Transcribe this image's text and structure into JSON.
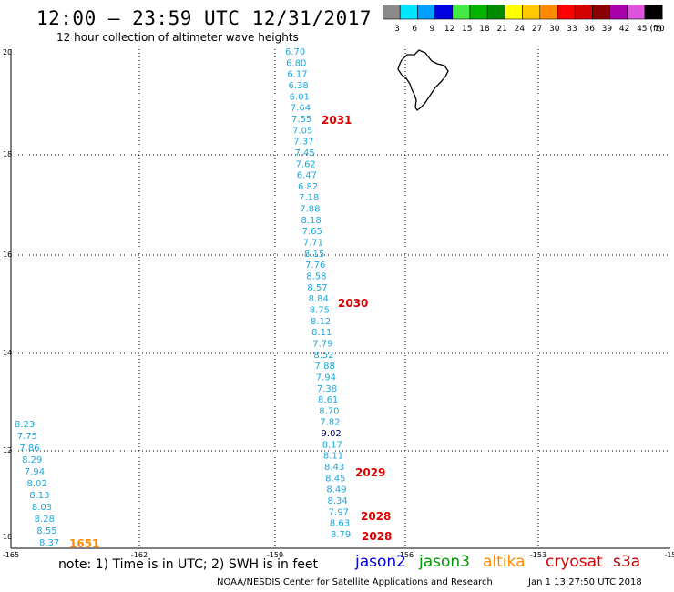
{
  "header": {
    "title": "12:00 — 23:59 UTC 12/31/2017",
    "subtitle": "12 hour collection of altimeter wave heights"
  },
  "legend": {
    "unit": "(ft)",
    "bins": [
      {
        "label": "3",
        "color": "#8a8a8a"
      },
      {
        "label": "6",
        "color": "#00e5ff"
      },
      {
        "label": "9",
        "color": "#00a0ff"
      },
      {
        "label": "12",
        "color": "#0000e0"
      },
      {
        "label": "15",
        "color": "#44e844"
      },
      {
        "label": "18",
        "color": "#00b400"
      },
      {
        "label": "21",
        "color": "#008a00"
      },
      {
        "label": "24",
        "color": "#ffff00"
      },
      {
        "label": "27",
        "color": "#ffc800"
      },
      {
        "label": "30",
        "color": "#ff8c00"
      },
      {
        "label": "33",
        "color": "#ff0000"
      },
      {
        "label": "36",
        "color": "#d40000"
      },
      {
        "label": "39",
        "color": "#8c0000"
      },
      {
        "label": "42",
        "color": "#aa00aa"
      },
      {
        "label": "45",
        "color": "#dd55dd"
      },
      {
        "label": "70",
        "color": "#000000"
      }
    ]
  },
  "axes": {
    "lon_labels": [
      "-165",
      "-162",
      "-159",
      "-156",
      "-153",
      "-15"
    ],
    "lat_labels": [
      "20",
      "18",
      "16",
      "14",
      "12",
      "10"
    ]
  },
  "tracks": {
    "central_values": [
      "6.70",
      "6.80",
      "6.17",
      "6.38",
      "6.01",
      "7.64",
      "7.55",
      "7.05",
      "7.37",
      "7.45",
      "7.62",
      "6.47",
      "6.82",
      "7.18",
      "7.88",
      "8.18",
      "7.65",
      "7.71",
      "8.15",
      "7.76",
      "8.58",
      "8.57",
      "8.84",
      "8.75",
      "8.12",
      "8.11",
      "7.79",
      "8.52",
      "7.88",
      "7.94",
      "7.38",
      "8.61",
      "8.70",
      "7.82",
      "9.02",
      "8.17",
      "8.11",
      "8.43",
      "8.45",
      "8.49",
      "8.34",
      "7.97",
      "8.63",
      "8.79"
    ],
    "central_colors": [
      "#1ba8e0",
      "#1ba8e0",
      "#1ba8e0",
      "#1ba8e0",
      "#1ba8e0",
      "#1ba8e0",
      "#1ba8e0",
      "#1ba8e0",
      "#1ba8e0",
      "#1ba8e0",
      "#1ba8e0",
      "#1ba8e0",
      "#1ba8e0",
      "#1ba8e0",
      "#1ba8e0",
      "#1ba8e0",
      "#1ba8e0",
      "#1ba8e0",
      "#1ba8e0",
      "#1ba8e0",
      "#1ba8e0",
      "#1ba8e0",
      "#1ba8e0",
      "#1ba8e0",
      "#1ba8e0",
      "#1ba8e0",
      "#1ba8e0",
      "#1ba8e0",
      "#1ba8e0",
      "#1ba8e0",
      "#1ba8e0",
      "#1ba8e0",
      "#1ba8e0",
      "#1ba8e0",
      "#00008b",
      "#1ba8e0",
      "#1ba8e0",
      "#1ba8e0",
      "#1ba8e0",
      "#1ba8e0",
      "#1ba8e0",
      "#1ba8e0",
      "#1ba8e0",
      "#1ba8e0"
    ],
    "central_times": [
      "2031",
      "2030",
      "2029",
      "2028",
      "2028"
    ],
    "left_values": [
      "8.23",
      "7.75",
      "7.86",
      "8.29",
      "7.94",
      "8.02",
      "8.13",
      "8.03",
      "8.28",
      "8.55",
      "8.37"
    ],
    "left_time": "1651",
    "left_time_color": "#ff8c00",
    "track_color": "#1ba8e0",
    "time_color": "#dd0000"
  },
  "footer": {
    "note": "note: 1) Time is in UTC; 2) SWH is in feet",
    "satellites": [
      {
        "name": "jason2",
        "color": "#0000dd"
      },
      {
        "name": "jason3",
        "color": "#009900"
      },
      {
        "name": "altika",
        "color": "#ff8c00"
      },
      {
        "name": "cryosat",
        "color": "#dd0000"
      },
      {
        "name": "s3a",
        "color": "#aa0000"
      }
    ],
    "credit": "NOAA/NESDIS Center for Satellite Applications and Research",
    "timestamp": "Jan  1 13:27:50 UTC 2018"
  }
}
